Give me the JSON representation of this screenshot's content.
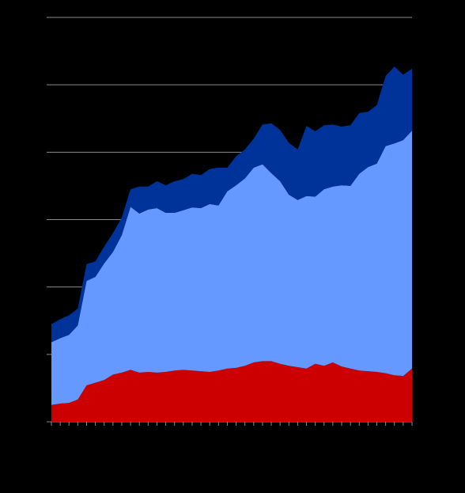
{
  "chart_data": {
    "type": "stacked-area",
    "categories": [
      null,
      null,
      null,
      null,
      null,
      null,
      null,
      null,
      null,
      null,
      null,
      null,
      null,
      null,
      null,
      null,
      null,
      null,
      null,
      null,
      null,
      null,
      null,
      null,
      null,
      null,
      null,
      null,
      null,
      null,
      null,
      null,
      null,
      null,
      null,
      null,
      null,
      null,
      null,
      null,
      null,
      null
    ],
    "series": [
      {
        "color": "#cc0000",
        "values": [
          0.25,
          0.27,
          0.28,
          0.33,
          0.54,
          0.58,
          0.62,
          0.7,
          0.73,
          0.77,
          0.73,
          0.74,
          0.73,
          0.74,
          0.76,
          0.77,
          0.76,
          0.75,
          0.74,
          0.76,
          0.79,
          0.8,
          0.83,
          0.88,
          0.9,
          0.9,
          0.86,
          0.83,
          0.81,
          0.79,
          0.86,
          0.83,
          0.88,
          0.82,
          0.79,
          0.76,
          0.75,
          0.74,
          0.72,
          0.69,
          0.68,
          0.79
        ]
      },
      {
        "color": "#6699ff",
        "values": [
          0.93,
          0.97,
          1.01,
          1.1,
          1.55,
          1.57,
          1.73,
          1.82,
          2.04,
          2.42,
          2.36,
          2.41,
          2.44,
          2.36,
          2.34,
          2.37,
          2.42,
          2.42,
          2.49,
          2.45,
          2.63,
          2.71,
          2.78,
          2.89,
          2.92,
          2.79,
          2.71,
          2.54,
          2.48,
          2.56,
          2.48,
          2.62,
          2.61,
          2.69,
          2.71,
          2.92,
          3.03,
          3.09,
          3.37,
          3.44,
          3.5,
          3.53
        ]
      },
      {
        "color": "#003399",
        "values": [
          0.27,
          0.28,
          0.29,
          0.25,
          0.25,
          0.23,
          0.25,
          0.28,
          0.26,
          0.26,
          0.4,
          0.34,
          0.4,
          0.41,
          0.47,
          0.46,
          0.5,
          0.49,
          0.52,
          0.56,
          0.35,
          0.43,
          0.43,
          0.43,
          0.59,
          0.74,
          0.76,
          0.77,
          0.75,
          1.04,
          0.97,
          0.95,
          0.92,
          0.87,
          0.9,
          0.9,
          0.82,
          0.87,
          1.04,
          1.14,
          0.97,
          0.92
        ]
      }
    ],
    "ylim": [
      0,
      6
    ],
    "yticks": [
      0,
      1,
      2,
      3,
      4,
      5,
      6
    ],
    "grid": true
  }
}
